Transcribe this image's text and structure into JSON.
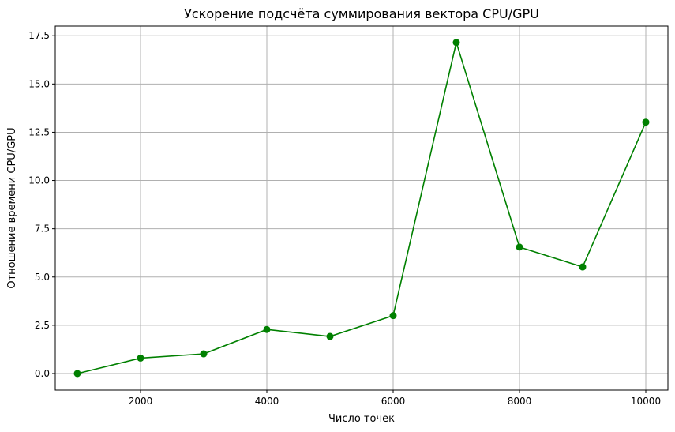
{
  "chart_data": {
    "type": "line",
    "title": "Ускорение подсчёта суммирования вектора CPU/GPU",
    "xlabel": "Число точек",
    "ylabel": "Отношение времени CPU/GPU",
    "x": [
      1000,
      2000,
      3000,
      4000,
      5000,
      6000,
      7000,
      8000,
      9000,
      10000
    ],
    "series": [
      {
        "values": [
          0.0,
          0.8,
          1.02,
          2.28,
          1.92,
          3.0,
          17.15,
          6.55,
          5.52,
          13.02
        ],
        "color": "#008000",
        "marker": "circle"
      }
    ],
    "xlim": [
      650,
      10350
    ],
    "ylim": [
      -0.86,
      18.0
    ],
    "xticks": [
      2000,
      4000,
      6000,
      8000,
      10000
    ],
    "xtick_labels": [
      "2000",
      "4000",
      "6000",
      "8000",
      "10000"
    ],
    "yticks": [
      0.0,
      2.5,
      5.0,
      7.5,
      10.0,
      12.5,
      15.0,
      17.5
    ],
    "ytick_labels": [
      "0.0",
      "2.5",
      "5.0",
      "7.5",
      "10.0",
      "12.5",
      "15.0",
      "17.5"
    ],
    "grid": true,
    "grid_color": "#b0b0b0"
  }
}
